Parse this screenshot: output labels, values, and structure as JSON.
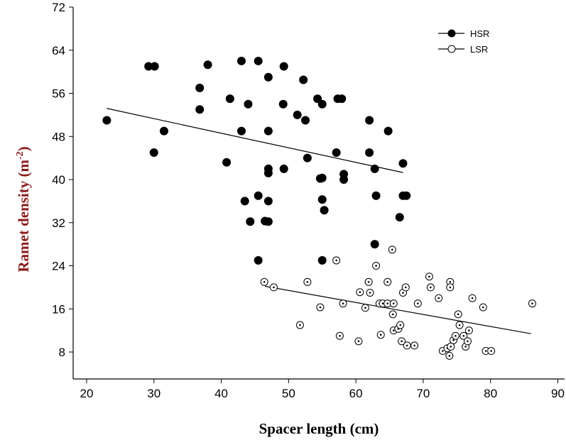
{
  "chart_data": {
    "type": "scatter",
    "xlabel": "Spacer length (cm)",
    "ylabel": "Ramet density (m",
    "ylabel_sup": "-2",
    "ylabel_end": ")",
    "xlim": [
      18,
      91
    ],
    "ylim": [
      3,
      72
    ],
    "xticks": [
      "20",
      "30",
      "40",
      "50",
      "60",
      "70",
      "80",
      "90"
    ],
    "yticks": [
      "8",
      "16",
      "24",
      "32",
      "40",
      "48",
      "56",
      "64",
      "72"
    ],
    "legend_position": "top-right",
    "axis_title_color": "#8B1A1A",
    "series": [
      {
        "name": "HSR",
        "marker": "filled-circle",
        "color": "#000000",
        "points": [
          [
            23,
            51
          ],
          [
            29.2,
            61
          ],
          [
            30.1,
            61
          ],
          [
            30,
            45
          ],
          [
            31.5,
            49
          ],
          [
            36.8,
            57
          ],
          [
            36.8,
            53
          ],
          [
            38,
            61.3
          ],
          [
            41.3,
            55
          ],
          [
            40.8,
            43.2
          ],
          [
            43,
            62
          ],
          [
            43,
            49
          ],
          [
            43.5,
            36
          ],
          [
            44,
            54
          ],
          [
            44.3,
            32.2
          ],
          [
            45.5,
            62
          ],
          [
            45.5,
            37
          ],
          [
            45.5,
            25
          ],
          [
            46.5,
            32.3
          ],
          [
            47,
            59
          ],
          [
            47,
            49
          ],
          [
            47,
            42
          ],
          [
            47,
            41.2
          ],
          [
            47,
            36
          ],
          [
            47,
            32.2
          ],
          [
            49.2,
            54
          ],
          [
            49.3,
            61
          ],
          [
            49.3,
            42
          ],
          [
            51.3,
            52
          ],
          [
            52.2,
            58.5
          ],
          [
            52.5,
            51
          ],
          [
            52.8,
            44
          ],
          [
            54.3,
            55
          ],
          [
            54.7,
            40.2
          ],
          [
            55,
            54
          ],
          [
            55,
            40.3
          ],
          [
            55,
            36.3
          ],
          [
            55.3,
            34.3
          ],
          [
            55,
            25
          ],
          [
            57.1,
            45
          ],
          [
            57.3,
            55
          ],
          [
            57.9,
            55
          ],
          [
            58.2,
            41
          ],
          [
            58.2,
            40
          ],
          [
            62,
            51
          ],
          [
            62,
            45
          ],
          [
            62.8,
            42
          ],
          [
            63,
            37
          ],
          [
            62.8,
            28
          ],
          [
            64.8,
            49
          ],
          [
            66.5,
            33
          ],
          [
            67,
            43
          ],
          [
            67,
            37
          ],
          [
            67.5,
            37
          ]
        ],
        "trend": [
          [
            23,
            53.2
          ],
          [
            67,
            41.3
          ]
        ]
      },
      {
        "name": "LSR",
        "marker": "open-circle",
        "color": "#000000",
        "points": [
          [
            46.4,
            21
          ],
          [
            47.8,
            20
          ],
          [
            51.7,
            13
          ],
          [
            52.8,
            21
          ],
          [
            54.7,
            16.3
          ],
          [
            57.1,
            25
          ],
          [
            57.6,
            11
          ],
          [
            58.1,
            17
          ],
          [
            60.4,
            10
          ],
          [
            60.6,
            19.1
          ],
          [
            61.4,
            16.2
          ],
          [
            61.9,
            21
          ],
          [
            62.1,
            19
          ],
          [
            63,
            24
          ],
          [
            63.5,
            17
          ],
          [
            63.7,
            11.2
          ],
          [
            64,
            17
          ],
          [
            64.7,
            21
          ],
          [
            64.7,
            17
          ],
          [
            65.4,
            27
          ],
          [
            65.6,
            17
          ],
          [
            65.5,
            15
          ],
          [
            65.6,
            12
          ],
          [
            66.3,
            12.3
          ],
          [
            66.6,
            13
          ],
          [
            66.8,
            10
          ],
          [
            67,
            19
          ],
          [
            67.4,
            20
          ],
          [
            67.6,
            9.2
          ],
          [
            68.7,
            9.2
          ],
          [
            69.2,
            17
          ],
          [
            70.9,
            22
          ],
          [
            71.1,
            20
          ],
          [
            72.3,
            18
          ],
          [
            72.9,
            8.2
          ],
          [
            73.6,
            8.7
          ],
          [
            74,
            21
          ],
          [
            74,
            20
          ],
          [
            73.9,
            7.3
          ],
          [
            74.1,
            9
          ],
          [
            74.5,
            10.2
          ],
          [
            74.8,
            11
          ],
          [
            75.2,
            15
          ],
          [
            75.4,
            13
          ],
          [
            76,
            11
          ],
          [
            76.3,
            9
          ],
          [
            76.6,
            10
          ],
          [
            76.8,
            12
          ],
          [
            77.3,
            18
          ],
          [
            78.9,
            16.3
          ],
          [
            79.3,
            8.2
          ],
          [
            80.1,
            8.2
          ],
          [
            86.2,
            17
          ]
        ],
        "trend": [
          [
            46.5,
            20.2
          ],
          [
            86,
            11.4
          ]
        ]
      }
    ]
  }
}
